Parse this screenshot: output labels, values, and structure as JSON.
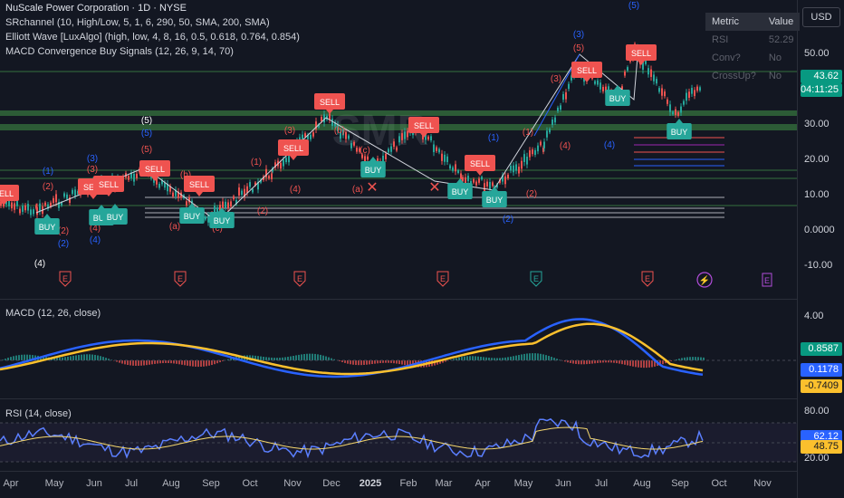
{
  "header": {
    "title": "NuScale Power Corporation · 1D · NYSE",
    "indicators": [
      "SRchannel (10, High/Low, 5, 1, 6, 290, 50, SMA, 200, SMA)",
      "Elliott Wave [LuxAlgo] (high, low, 4, 8, 16, 0.5, 0.618, 0.764, 0.854)",
      "MACD Convergence Buy Signals (12, 26, 9, 14, 70)"
    ]
  },
  "currency_button": "USD",
  "metric_table": {
    "headers": [
      "Metric",
      "Value"
    ],
    "rows": [
      [
        "RSI",
        "52.29"
      ],
      [
        "Conv?",
        "No"
      ],
      [
        "CrossUp?",
        "No"
      ]
    ]
  },
  "price_axis": {
    "labels": [
      "50.00",
      "30.00",
      "20.00",
      "10.00",
      "0.0000",
      "-10.00"
    ],
    "last_price": "43.62",
    "countdown": "04:11:25",
    "price_badge_color": "#089981"
  },
  "watermark": "SMR",
  "elliott_labels": [
    "(1)",
    "(2)",
    "(3)",
    "(4)",
    "(5)",
    "(a)",
    "(b)",
    "(c)"
  ],
  "signals": {
    "buy": "BUY",
    "sell": "SELL"
  },
  "earnings_marker": "E",
  "macd": {
    "title": "MACD (12, 26, close)",
    "axis_top": "4.00",
    "hist_value": "0.8587",
    "macd_value": "0.1178",
    "signal_value": "-0.7409",
    "macd_color": "#2962ff",
    "signal_color": "#fbc02d"
  },
  "rsi": {
    "title": "RSI (14, close)",
    "axis_top": "80.00",
    "axis_bottom": "20.00",
    "rsi_value": "62.12",
    "ma_value": "48.75",
    "rsi_color": "#5b7fff",
    "ma_color": "#f5d76e"
  },
  "x_axis": {
    "labels": [
      "Apr",
      "May",
      "Jun",
      "Jul",
      "Aug",
      "Sep",
      "Oct",
      "Nov",
      "Dec",
      "2025",
      "Feb",
      "Mar",
      "Apr",
      "May",
      "Jun",
      "Jul",
      "Aug",
      "Sep",
      "Oct",
      "Nov"
    ]
  },
  "colors": {
    "background": "#131722",
    "buy": "#26a69a",
    "sell": "#ef5350",
    "band": "#4caf50"
  }
}
